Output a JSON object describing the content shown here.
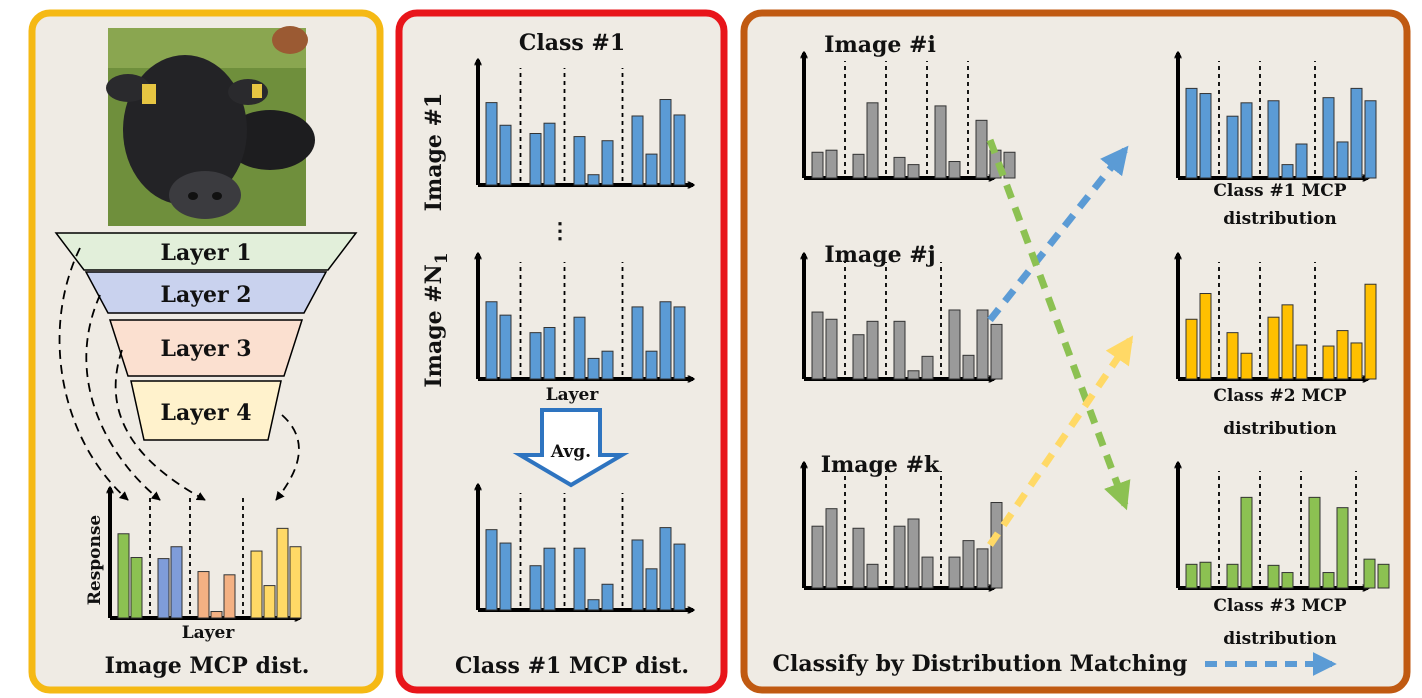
{
  "colors": {
    "panel_bg": "#efebe4",
    "panel1_border": "#f5b914",
    "panel2_border": "#e8151a",
    "panel3_border": "#c05a12",
    "blue": "#5b9bd5",
    "gray": "#9a9a9a",
    "yellow": "#ffc000",
    "green": "#8cc152",
    "layer1": "#e2efda",
    "layer2": "#c9d2ee",
    "layer3": "#fbe0d0",
    "layer4": "#fff2cc",
    "green_bar": "#8cc152",
    "blue_bar": "#7f9cd9",
    "orange_bar": "#f4b183",
    "yellow_bar": "#ffd966"
  },
  "panel1": {
    "layers": [
      "Layer 1",
      "Layer 2",
      "Layer 3",
      "Layer 4"
    ],
    "y_label": "Response",
    "x_label": "Layer",
    "caption": "Image MCP dist.",
    "bars": [
      [
        0.78,
        0.56
      ],
      [
        0.55,
        0.66
      ],
      [
        0.43,
        0.06,
        0.4
      ],
      [
        0.62,
        0.3,
        0.83,
        0.66
      ]
    ]
  },
  "panel2": {
    "title": "Class #1",
    "row1_label": "Image #1",
    "row2_label": "Image #N",
    "row2_sub": "1",
    "ellipsis": "⋮",
    "x_label": "Layer",
    "avg_label": "Avg.",
    "caption": "Class #1 MCP dist.",
    "hist1": [
      [
        0.8,
        0.58
      ],
      [
        0.5,
        0.6
      ],
      [
        0.47,
        0.1,
        0.43
      ],
      [
        0.67,
        0.3,
        0.83,
        0.68
      ]
    ],
    "hist2": [
      [
        0.75,
        0.62
      ],
      [
        0.45,
        0.5
      ],
      [
        0.6,
        0.2,
        0.27
      ],
      [
        0.7,
        0.27,
        0.75,
        0.7
      ]
    ],
    "hist3": [
      [
        0.78,
        0.65
      ],
      [
        0.43,
        0.6
      ],
      [
        0.6,
        0.1,
        0.25
      ],
      [
        0.68,
        0.4,
        0.8,
        0.64
      ]
    ]
  },
  "panel3": {
    "image_i": "Image #i",
    "image_j": "Image #j",
    "image_k": "Image #k",
    "class1_line1": "Class #1 MCP",
    "class1_line2": "distribution",
    "class2_line1": "Class #2 MCP",
    "class2_line2": "distribution",
    "class3_line1": "Class #3 MCP",
    "class3_line2": "distribution",
    "caption": "Classify by Distribution Matching",
    "hist_i": [
      [
        0.25,
        0.27
      ],
      [
        0.23,
        0.73
      ],
      [
        0.2,
        0.13
      ],
      [
        0.7,
        0.16
      ],
      [
        0.56,
        0.27,
        0.25
      ]
    ],
    "hist_j": [
      [
        0.65,
        0.58
      ],
      [
        0.43,
        0.56
      ],
      [
        0.56,
        0.08,
        0.22
      ],
      [
        0.67,
        0.23,
        0.67,
        0.53
      ]
    ],
    "hist_k": [
      [
        0.6,
        0.77
      ],
      [
        0.58,
        0.23
      ],
      [
        0.6,
        0.67,
        0.3
      ],
      [
        0.3,
        0.46,
        0.38,
        0.83
      ]
    ],
    "hist_c1": [
      [
        0.87,
        0.82
      ],
      [
        0.6,
        0.73
      ],
      [
        0.75,
        0.13,
        0.33
      ],
      [
        0.78,
        0.35,
        0.87,
        0.75
      ]
    ],
    "hist_c2": [
      [
        0.58,
        0.83
      ],
      [
        0.45,
        0.25
      ],
      [
        0.6,
        0.72,
        0.33
      ],
      [
        0.32,
        0.47,
        0.35,
        0.92
      ]
    ],
    "hist_c3": [
      [
        0.23,
        0.25
      ],
      [
        0.23,
        0.88
      ],
      [
        0.22,
        0.15
      ],
      [
        0.88,
        0.15,
        0.78
      ],
      [
        0.28,
        0.23
      ]
    ]
  }
}
